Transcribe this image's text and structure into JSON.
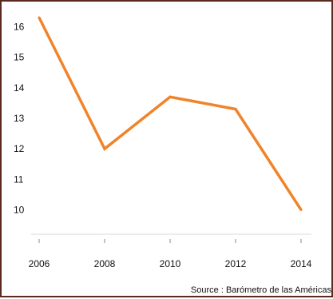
{
  "chart_data": {
    "type": "line",
    "title": "",
    "xlabel": "",
    "ylabel": "",
    "x": [
      2006,
      2008,
      2010,
      2012,
      2014
    ],
    "series": [
      {
        "values": [
          16.3,
          12.0,
          13.7,
          13.3,
          10.0
        ],
        "color": "#f0842a"
      }
    ],
    "ylim": [
      9.2,
      16.3
    ],
    "yticks": [
      10,
      11,
      12,
      13,
      14,
      15,
      16
    ],
    "xticks": [
      2006,
      2008,
      2010,
      2012,
      2014
    ],
    "grid": false,
    "legend": "none",
    "source": "Source : Barómetro de las Américas",
    "colors": {
      "frame_border": "#5a2a1e",
      "axis_line": "#d9d9d9",
      "tick_mark": "#888888"
    }
  }
}
